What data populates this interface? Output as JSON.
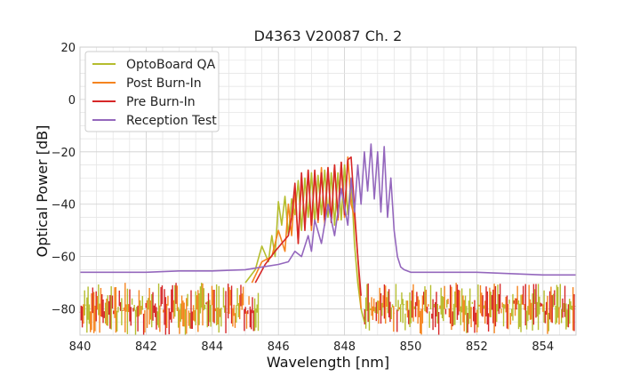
{
  "chart_data": {
    "type": "line",
    "title": "D4363 V20087 Ch. 2",
    "xlabel": "Wavelength [nm]",
    "ylabel": "Optical Power [dB]",
    "xlim": [
      840,
      855
    ],
    "ylim": [
      -90,
      20
    ],
    "xticks": [
      840,
      842,
      844,
      846,
      848,
      850,
      852,
      854
    ],
    "yticks": [
      -80,
      -60,
      -40,
      -20,
      0,
      20
    ],
    "grid": true,
    "legend_position": "top-left",
    "series": [
      {
        "name": "OptoBoard QA",
        "color": "#b5bd2e",
        "x": [
          845.0,
          845.3,
          845.5,
          845.7,
          845.8,
          845.9,
          846.0,
          846.1,
          846.2,
          846.3,
          846.4,
          846.5,
          846.6,
          846.7,
          846.8,
          846.9,
          847.0,
          847.1,
          847.2,
          847.3,
          847.4,
          847.5,
          847.6,
          847.7,
          847.8,
          847.9,
          848.0,
          848.1,
          848.2,
          848.3,
          848.4,
          848.5,
          848.6
        ],
        "y": [
          -70,
          -65,
          -56,
          -62,
          -52,
          -60,
          -39,
          -48,
          -37,
          -52,
          -38,
          -44,
          -31,
          -50,
          -30,
          -45,
          -28,
          -47,
          -29,
          -44,
          -27,
          -45,
          -28,
          -48,
          -28,
          -46,
          -25,
          -44,
          -30,
          -55,
          -70,
          -80,
          -85
        ]
      },
      {
        "name": "Post Burn-In",
        "color": "#f5841f",
        "x": [
          845.2,
          845.5,
          845.8,
          846.0,
          846.2,
          846.3,
          846.4,
          846.5,
          846.6,
          846.7,
          846.8,
          846.9,
          847.0,
          847.1,
          847.2,
          847.3,
          847.4,
          847.5,
          847.6,
          847.7,
          847.8,
          847.9,
          848.0,
          848.1,
          848.2,
          848.3,
          848.4,
          848.5
        ],
        "y": [
          -70,
          -62,
          -60,
          -50,
          -58,
          -40,
          -52,
          -34,
          -55,
          -30,
          -48,
          -27,
          -50,
          -28,
          -47,
          -26,
          -48,
          -26,
          -47,
          -25,
          -46,
          -24,
          -45,
          -22,
          -40,
          -45,
          -60,
          -80
        ]
      },
      {
        "name": "Pre Burn-In",
        "color": "#d62728",
        "x": [
          845.3,
          845.6,
          845.9,
          846.1,
          846.3,
          846.4,
          846.5,
          846.6,
          846.7,
          846.8,
          846.9,
          847.0,
          847.1,
          847.2,
          847.3,
          847.4,
          847.5,
          847.6,
          847.7,
          847.8,
          847.9,
          848.0,
          848.1,
          848.2,
          848.3,
          848.4,
          848.5
        ],
        "y": [
          -70,
          -63,
          -58,
          -55,
          -52,
          -45,
          -32,
          -55,
          -28,
          -50,
          -27,
          -48,
          -27,
          -46,
          -28,
          -46,
          -26,
          -47,
          -25,
          -45,
          -24,
          -44,
          -23,
          -22,
          -42,
          -60,
          -75
        ]
      },
      {
        "name": "Reception Test",
        "color": "#9467bd",
        "x": [
          840.0,
          841.0,
          842.0,
          843.0,
          844.0,
          845.0,
          845.5,
          846.0,
          846.3,
          846.5,
          846.7,
          846.9,
          847.0,
          847.1,
          847.3,
          847.5,
          847.7,
          847.9,
          848.1,
          848.2,
          848.3,
          848.4,
          848.5,
          848.6,
          848.7,
          848.8,
          848.9,
          849.0,
          849.1,
          849.2,
          849.3,
          849.4,
          849.5,
          849.6,
          849.7,
          849.8,
          850.0,
          851.0,
          852.0,
          853.0,
          854.0,
          855.0
        ],
        "y": [
          -66,
          -66,
          -66,
          -65.5,
          -65.5,
          -65,
          -64,
          -63,
          -62,
          -58,
          -60,
          -52,
          -58,
          -46,
          -55,
          -40,
          -52,
          -34,
          -48,
          -30,
          -43,
          -25,
          -40,
          -20,
          -35,
          -17,
          -38,
          -20,
          -43,
          -18,
          -45,
          -30,
          -50,
          -60,
          -64,
          -65,
          -66,
          -66,
          -66,
          -66.5,
          -67,
          -67
        ]
      }
    ]
  }
}
